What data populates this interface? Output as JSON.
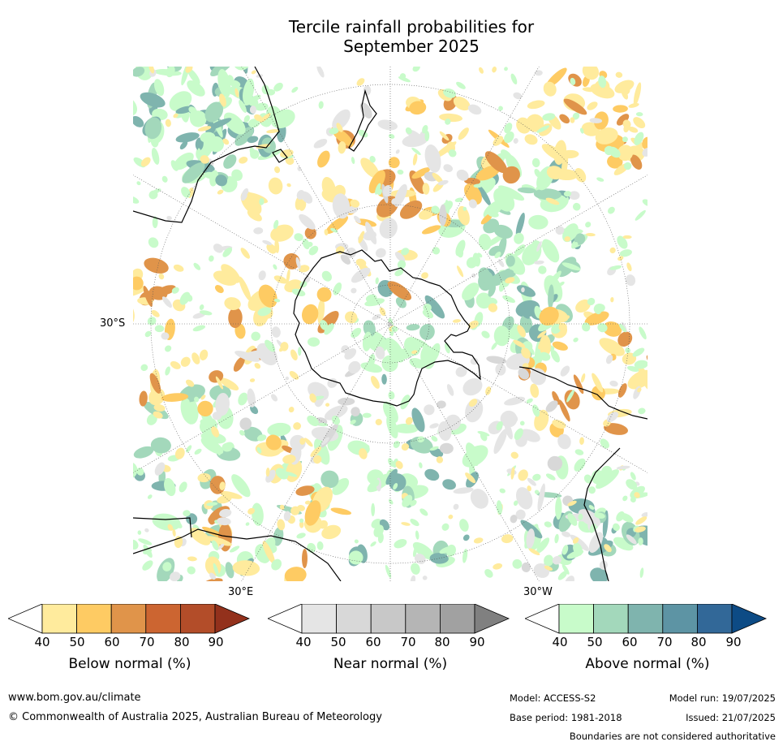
{
  "title_line1": "Tercile rainfall probabilities for",
  "title_line2": "September 2025",
  "map": {
    "lat_label": "30°S",
    "lon_label_east": "30°E",
    "lon_label_west": "30°W"
  },
  "colorbars": [
    {
      "label": "Below normal (%)",
      "ticks": [
        "40",
        "50",
        "60",
        "70",
        "80",
        "90"
      ],
      "colors": [
        "#ffffff",
        "#ffeb9d",
        "#fecb63",
        "#e0944a",
        "#cc6531",
        "#b34d29",
        "#93311c"
      ]
    },
    {
      "label": "Near normal (%)",
      "ticks": [
        "40",
        "50",
        "60",
        "70",
        "80",
        "90"
      ],
      "colors": [
        "#ffffff",
        "#e5e5e5",
        "#d8d8d8",
        "#c8c8c8",
        "#b5b5b5",
        "#a1a1a1",
        "#808080"
      ]
    },
    {
      "label": "Above normal (%)",
      "ticks": [
        "40",
        "50",
        "60",
        "70",
        "80",
        "90"
      ],
      "colors": [
        "#ffffff",
        "#c8fbca",
        "#a3d8bb",
        "#7fb4ae",
        "#5d94a4",
        "#326898",
        "#0d4b85"
      ]
    }
  ],
  "footer": {
    "url": "www.bom.gov.au/climate",
    "copyright": "© Commonwealth of Australia 2025, Australian Bureau of Meteorology",
    "model": "Model: ACCESS-S2",
    "model_run": "Model run: 19/07/2025",
    "base_period": "Base period: 1981-2018",
    "issued": "Issued: 21/07/2025",
    "disclaimer": "Boundaries are not considered authoritative"
  }
}
